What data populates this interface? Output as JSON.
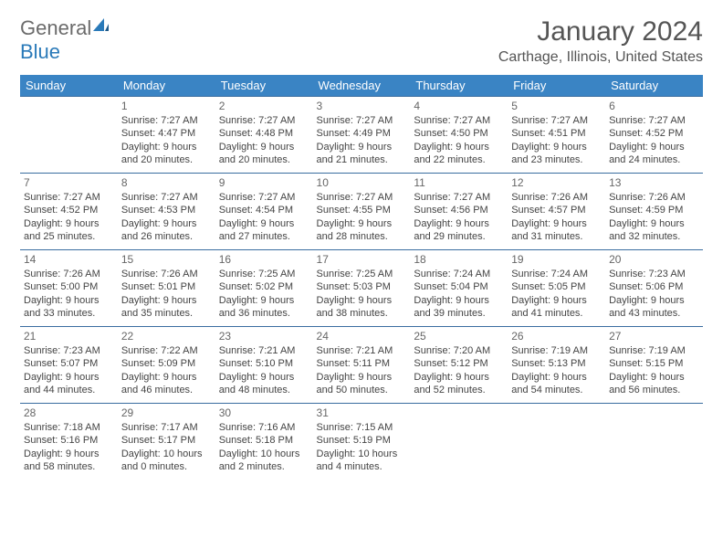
{
  "brand": {
    "general": "General",
    "blue": "Blue"
  },
  "title": "January 2024",
  "location": "Carthage, Illinois, United States",
  "colors": {
    "header_bg": "#3a84c4",
    "header_text": "#ffffff",
    "row_border": "#3a6da0",
    "title_color": "#555555",
    "text_color": "#444444",
    "logo_gray": "#6b6b6b",
    "logo_blue": "#2a7ab9"
  },
  "column_headers": [
    "Sunday",
    "Monday",
    "Tuesday",
    "Wednesday",
    "Thursday",
    "Friday",
    "Saturday"
  ],
  "weeks": [
    [
      {
        "day": "",
        "sunrise": "",
        "sunset": "",
        "daylight": ""
      },
      {
        "day": "1",
        "sunrise": "Sunrise: 7:27 AM",
        "sunset": "Sunset: 4:47 PM",
        "daylight": "Daylight: 9 hours and 20 minutes."
      },
      {
        "day": "2",
        "sunrise": "Sunrise: 7:27 AM",
        "sunset": "Sunset: 4:48 PM",
        "daylight": "Daylight: 9 hours and 20 minutes."
      },
      {
        "day": "3",
        "sunrise": "Sunrise: 7:27 AM",
        "sunset": "Sunset: 4:49 PM",
        "daylight": "Daylight: 9 hours and 21 minutes."
      },
      {
        "day": "4",
        "sunrise": "Sunrise: 7:27 AM",
        "sunset": "Sunset: 4:50 PM",
        "daylight": "Daylight: 9 hours and 22 minutes."
      },
      {
        "day": "5",
        "sunrise": "Sunrise: 7:27 AM",
        "sunset": "Sunset: 4:51 PM",
        "daylight": "Daylight: 9 hours and 23 minutes."
      },
      {
        "day": "6",
        "sunrise": "Sunrise: 7:27 AM",
        "sunset": "Sunset: 4:52 PM",
        "daylight": "Daylight: 9 hours and 24 minutes."
      }
    ],
    [
      {
        "day": "7",
        "sunrise": "Sunrise: 7:27 AM",
        "sunset": "Sunset: 4:52 PM",
        "daylight": "Daylight: 9 hours and 25 minutes."
      },
      {
        "day": "8",
        "sunrise": "Sunrise: 7:27 AM",
        "sunset": "Sunset: 4:53 PM",
        "daylight": "Daylight: 9 hours and 26 minutes."
      },
      {
        "day": "9",
        "sunrise": "Sunrise: 7:27 AM",
        "sunset": "Sunset: 4:54 PM",
        "daylight": "Daylight: 9 hours and 27 minutes."
      },
      {
        "day": "10",
        "sunrise": "Sunrise: 7:27 AM",
        "sunset": "Sunset: 4:55 PM",
        "daylight": "Daylight: 9 hours and 28 minutes."
      },
      {
        "day": "11",
        "sunrise": "Sunrise: 7:27 AM",
        "sunset": "Sunset: 4:56 PM",
        "daylight": "Daylight: 9 hours and 29 minutes."
      },
      {
        "day": "12",
        "sunrise": "Sunrise: 7:26 AM",
        "sunset": "Sunset: 4:57 PM",
        "daylight": "Daylight: 9 hours and 31 minutes."
      },
      {
        "day": "13",
        "sunrise": "Sunrise: 7:26 AM",
        "sunset": "Sunset: 4:59 PM",
        "daylight": "Daylight: 9 hours and 32 minutes."
      }
    ],
    [
      {
        "day": "14",
        "sunrise": "Sunrise: 7:26 AM",
        "sunset": "Sunset: 5:00 PM",
        "daylight": "Daylight: 9 hours and 33 minutes."
      },
      {
        "day": "15",
        "sunrise": "Sunrise: 7:26 AM",
        "sunset": "Sunset: 5:01 PM",
        "daylight": "Daylight: 9 hours and 35 minutes."
      },
      {
        "day": "16",
        "sunrise": "Sunrise: 7:25 AM",
        "sunset": "Sunset: 5:02 PM",
        "daylight": "Daylight: 9 hours and 36 minutes."
      },
      {
        "day": "17",
        "sunrise": "Sunrise: 7:25 AM",
        "sunset": "Sunset: 5:03 PM",
        "daylight": "Daylight: 9 hours and 38 minutes."
      },
      {
        "day": "18",
        "sunrise": "Sunrise: 7:24 AM",
        "sunset": "Sunset: 5:04 PM",
        "daylight": "Daylight: 9 hours and 39 minutes."
      },
      {
        "day": "19",
        "sunrise": "Sunrise: 7:24 AM",
        "sunset": "Sunset: 5:05 PM",
        "daylight": "Daylight: 9 hours and 41 minutes."
      },
      {
        "day": "20",
        "sunrise": "Sunrise: 7:23 AM",
        "sunset": "Sunset: 5:06 PM",
        "daylight": "Daylight: 9 hours and 43 minutes."
      }
    ],
    [
      {
        "day": "21",
        "sunrise": "Sunrise: 7:23 AM",
        "sunset": "Sunset: 5:07 PM",
        "daylight": "Daylight: 9 hours and 44 minutes."
      },
      {
        "day": "22",
        "sunrise": "Sunrise: 7:22 AM",
        "sunset": "Sunset: 5:09 PM",
        "daylight": "Daylight: 9 hours and 46 minutes."
      },
      {
        "day": "23",
        "sunrise": "Sunrise: 7:21 AM",
        "sunset": "Sunset: 5:10 PM",
        "daylight": "Daylight: 9 hours and 48 minutes."
      },
      {
        "day": "24",
        "sunrise": "Sunrise: 7:21 AM",
        "sunset": "Sunset: 5:11 PM",
        "daylight": "Daylight: 9 hours and 50 minutes."
      },
      {
        "day": "25",
        "sunrise": "Sunrise: 7:20 AM",
        "sunset": "Sunset: 5:12 PM",
        "daylight": "Daylight: 9 hours and 52 minutes."
      },
      {
        "day": "26",
        "sunrise": "Sunrise: 7:19 AM",
        "sunset": "Sunset: 5:13 PM",
        "daylight": "Daylight: 9 hours and 54 minutes."
      },
      {
        "day": "27",
        "sunrise": "Sunrise: 7:19 AM",
        "sunset": "Sunset: 5:15 PM",
        "daylight": "Daylight: 9 hours and 56 minutes."
      }
    ],
    [
      {
        "day": "28",
        "sunrise": "Sunrise: 7:18 AM",
        "sunset": "Sunset: 5:16 PM",
        "daylight": "Daylight: 9 hours and 58 minutes."
      },
      {
        "day": "29",
        "sunrise": "Sunrise: 7:17 AM",
        "sunset": "Sunset: 5:17 PM",
        "daylight": "Daylight: 10 hours and 0 minutes."
      },
      {
        "day": "30",
        "sunrise": "Sunrise: 7:16 AM",
        "sunset": "Sunset: 5:18 PM",
        "daylight": "Daylight: 10 hours and 2 minutes."
      },
      {
        "day": "31",
        "sunrise": "Sunrise: 7:15 AM",
        "sunset": "Sunset: 5:19 PM",
        "daylight": "Daylight: 10 hours and 4 minutes."
      },
      {
        "day": "",
        "sunrise": "",
        "sunset": "",
        "daylight": ""
      },
      {
        "day": "",
        "sunrise": "",
        "sunset": "",
        "daylight": ""
      },
      {
        "day": "",
        "sunrise": "",
        "sunset": "",
        "daylight": ""
      }
    ]
  ]
}
